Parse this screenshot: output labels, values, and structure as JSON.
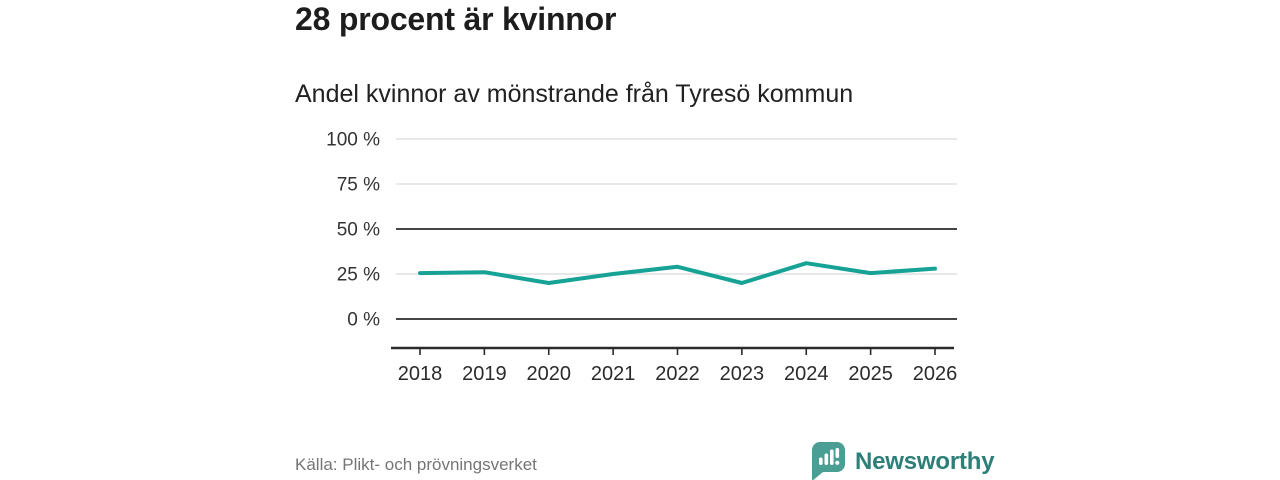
{
  "header": {
    "title": "28 procent är kvinnor"
  },
  "chart_data": {
    "type": "line",
    "title": "Andel kvinnor av mönstrande från Tyresö kommun",
    "x": [
      "2018",
      "2019",
      "2020",
      "2021",
      "2022",
      "2023",
      "2024",
      "2025",
      "2026"
    ],
    "series": [
      {
        "name": "Andel kvinnor",
        "values": [
          25.5,
          26,
          20,
          25,
          29,
          20,
          31,
          25.5,
          28
        ]
      }
    ],
    "unit": "%",
    "ylim": [
      0,
      100
    ],
    "yticks": [
      0,
      25,
      50,
      75,
      100
    ],
    "ytick_label_suffix": " %",
    "emphasized_gridlines": [
      0,
      50
    ],
    "grid": true,
    "legend": "none",
    "line_color": "#16a295"
  },
  "footer": {
    "source": "Källa: Plikt- och prövningsverket",
    "brand": "Newsworthy"
  },
  "colors": {
    "accent_line": "#16a295",
    "grid_light": "#d9d9d9",
    "grid_dark": "#454545",
    "axis": "#2b2b2b",
    "title_text": "#1d1d1d",
    "subtitle_text": "#212121",
    "tick_text": "#333333",
    "source_text": "#757575",
    "brand_bubble": "#4a9e94",
    "brand_text": "#2d7f78"
  }
}
